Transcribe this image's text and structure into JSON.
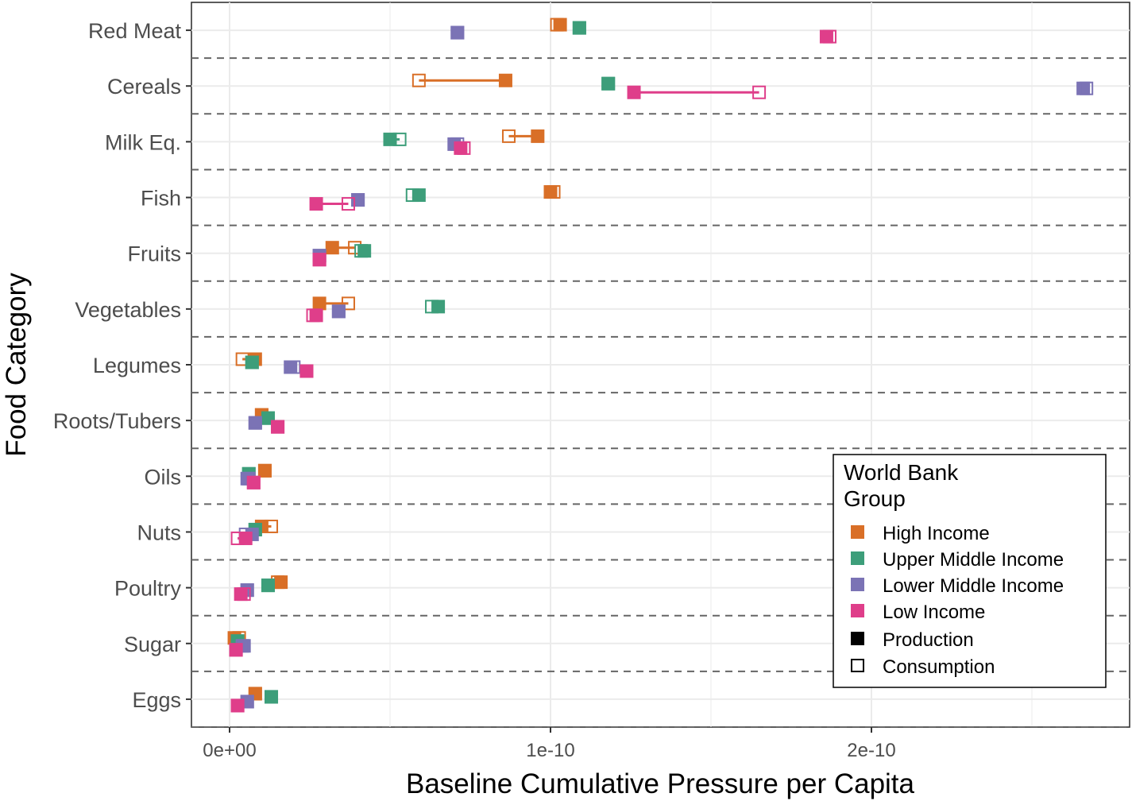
{
  "chart_data": {
    "type": "scatter",
    "title": "",
    "xlabel": "Baseline Cumulative Pressure per Capita",
    "ylabel": "Food Category",
    "xlim": [
      -1.2e-11,
      2.8e-10
    ],
    "x_ticks": [
      0,
      1e-10,
      2e-10
    ],
    "x_tick_labels": [
      "0e+00",
      "1e-10",
      "2e-10"
    ],
    "grid": true,
    "categories": [
      "Red Meat",
      "Cereals",
      "Milk Eq.",
      "Fish",
      "Fruits",
      "Vegetables",
      "Legumes",
      "Roots/Tubers",
      "Oils",
      "Nuts",
      "Poultry",
      "Sugar",
      "Eggs"
    ],
    "legend": {
      "title_line1": "World Bank",
      "title_line2": "Group",
      "position": "bottom-right",
      "groups": [
        "High Income",
        "Upper Middle Income",
        "Lower Middle Income",
        "Low Income"
      ],
      "shapes": [
        "Production",
        "Consumption"
      ]
    },
    "colors": {
      "High Income": "#D96F27",
      "Upper Middle Income": "#3D9E7A",
      "Lower Middle Income": "#7B73B5",
      "Low Income": "#DF3E8A"
    },
    "series": [
      {
        "name": "High Income",
        "production": [
          1.03e-10,
          8.6e-11,
          9.6e-11,
          1e-10,
          3.2e-11,
          2.8e-11,
          8e-12,
          1e-11,
          1.1e-11,
          1e-11,
          1.6e-11,
          1.5e-12,
          8e-12
        ],
        "consumption": [
          1.02e-10,
          5.9e-11,
          8.7e-11,
          1.01e-10,
          3.9e-11,
          3.7e-11,
          4e-12,
          1e-11,
          1.1e-11,
          1.3e-11,
          1.5e-11,
          3e-12,
          8e-12
        ]
      },
      {
        "name": "Upper Middle Income",
        "production": [
          1.09e-10,
          1.18e-10,
          5e-11,
          5.9e-11,
          4.2e-11,
          6.5e-11,
          7e-12,
          1.2e-11,
          6e-12,
          8e-12,
          1.2e-11,
          2.5e-12,
          1.3e-11
        ],
        "consumption": [
          1.09e-10,
          1.18e-10,
          5.3e-11,
          5.7e-11,
          4.1e-11,
          6.3e-11,
          7e-12,
          1.2e-11,
          6e-12,
          8e-12,
          1.2e-11,
          2.5e-12,
          1.3e-11
        ]
      },
      {
        "name": "Lower Middle Income",
        "production": [
          7.1e-11,
          2.66e-10,
          7e-11,
          4e-11,
          2.8e-11,
          3.4e-11,
          1.9e-11,
          8e-12,
          5.5e-12,
          7e-12,
          5.5e-12,
          4.5e-12,
          5.5e-12
        ],
        "consumption": [
          7.1e-11,
          2.67e-10,
          7.1e-11,
          4e-11,
          2.8e-11,
          3.4e-11,
          2e-11,
          8e-12,
          6e-12,
          5e-12,
          5.5e-12,
          4e-12,
          5.5e-12
        ]
      },
      {
        "name": "Low Income",
        "production": [
          1.86e-10,
          1.26e-10,
          7.2e-11,
          2.7e-11,
          2.8e-11,
          2.7e-11,
          2.4e-11,
          1.5e-11,
          7.5e-12,
          5e-12,
          3.5e-12,
          2e-12,
          2.5e-12
        ],
        "consumption": [
          1.87e-10,
          1.65e-10,
          7.3e-11,
          3.7e-11,
          2.8e-11,
          2.6e-11,
          2.4e-11,
          1.5e-11,
          7.5e-12,
          2.5e-12,
          4.5e-12,
          2e-12,
          2.5e-12
        ]
      }
    ]
  }
}
